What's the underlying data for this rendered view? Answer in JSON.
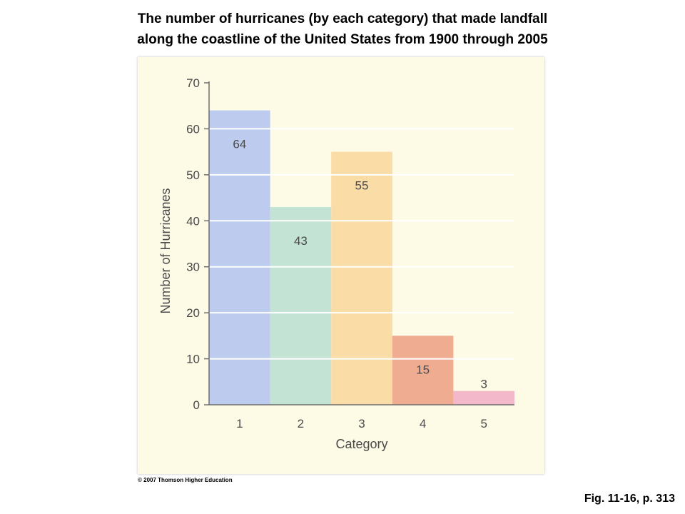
{
  "title_lines": [
    "The number of hurricanes (by each category) that made landfall",
    "along the coastline of the United States from 1900 through 2005"
  ],
  "copyright": "© 2007 Thomson Higher Education",
  "figure_ref": "Fig. 11-16, p. 313",
  "chart_data": {
    "type": "bar",
    "categories": [
      "1",
      "2",
      "3",
      "4",
      "5"
    ],
    "values": [
      64,
      43,
      55,
      15,
      3
    ],
    "data_labels": [
      "64",
      "43",
      "55",
      "15",
      "3"
    ],
    "bar_colors": [
      "#bccbee",
      "#c3e3d4",
      "#fadca6",
      "#f0ac90",
      "#f4b8cb"
    ],
    "xlabel": "Category",
    "ylabel": "Number of Hurricanes",
    "ylim": [
      0,
      70
    ],
    "yticks": [
      0,
      10,
      20,
      30,
      40,
      50,
      60,
      70
    ],
    "grid": true,
    "legend": "none"
  }
}
